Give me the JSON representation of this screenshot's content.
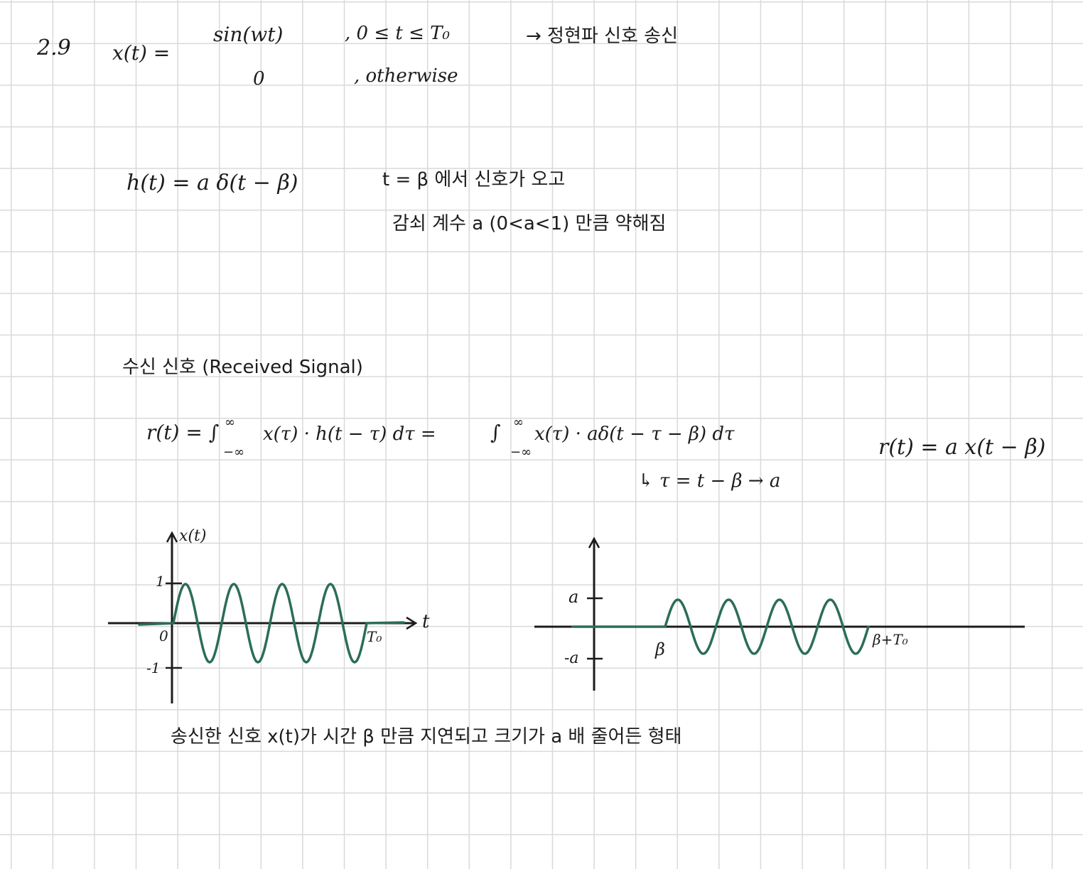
{
  "problem": {
    "number": "2.9"
  },
  "xdef": {
    "lhs": "x(t) =",
    "case1_expr": "sin(wt)",
    "case1_cond": ", 0 ≤ t ≤ T₀",
    "case1_note": "→ 정현파 신호 송신",
    "case2_expr": "0",
    "case2_cond": ", otherwise"
  },
  "hdef": {
    "eq": "h(t) = a δ(t − β)",
    "note1": "t = β 에서 신호가 오고",
    "note2": "감쇠 계수 a (0<a<1) 만큼 약해짐"
  },
  "received": {
    "heading": "수신 신호 (Received Signal)",
    "eq_lhs": "r(t) = ∫",
    "int1_upper": "∞",
    "int1_lower": "−∞",
    "int1_body": "x(τ) · h(t − τ) dτ =",
    "int2_upper": "∞",
    "int2_lower": "−∞",
    "int2_body": "x(τ) · aδ(t − τ − β) dτ",
    "substitution": "↳ τ = t − β → a",
    "result": "r(t) = a x(t − β)"
  },
  "graph1": {
    "ylabel": "x(t)",
    "xlabel": "t",
    "tick_one": "1",
    "tick_neg_one": "-1",
    "origin": "0",
    "end_label": "T₀"
  },
  "graph2": {
    "tick_a": "a",
    "tick_neg_a": "-a",
    "start_label": "β",
    "end_label": "β+T₀"
  },
  "conclusion": "송신한 신호 x(t)가 시간 β 만큼 지연되고 크기가 a 배 줄어든 형태",
  "colors": {
    "ink": "#1c1c1c",
    "wave": "#2b6e55",
    "grid": "#d9d9d9"
  }
}
